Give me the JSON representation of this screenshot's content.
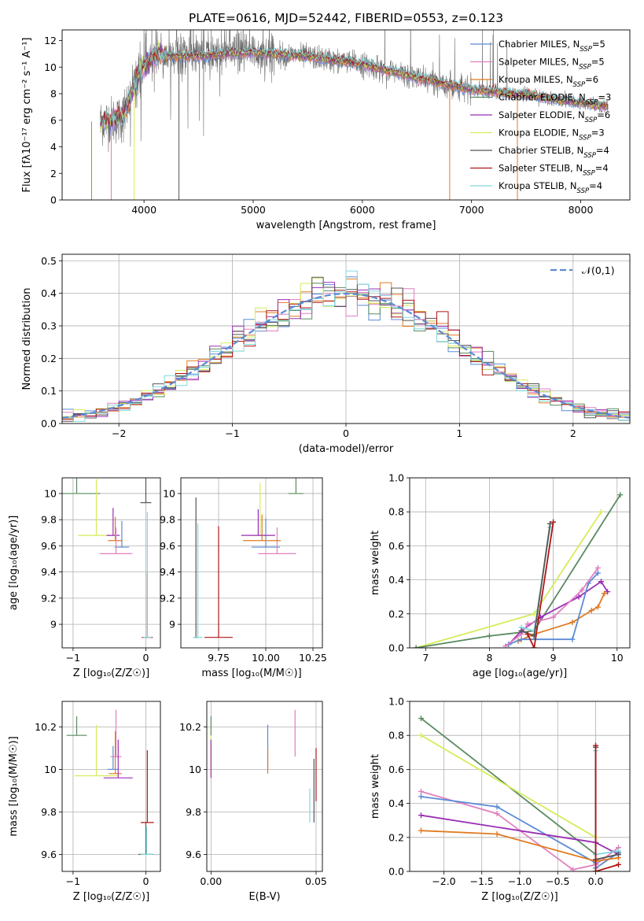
{
  "figure": {
    "title": "PLATE=0616, MJD=52442, FIBERID=0553, z=0.123"
  },
  "colors": {
    "Chabrier MILES": "#5b8bd5",
    "Salpeter MILES": "#e07fbf",
    "Kroupa MILES": "#e07b22",
    "Chabrier ELODIE": "#5a8a60",
    "Salpeter ELODIE": "#9a2fb5",
    "Kroupa ELODIE": "#d6ec5c",
    "Chabrier STELIB": "#555555",
    "Salpeter STELIB": "#b01515",
    "Kroupa STELIB": "#7fd8dc"
  },
  "chart_data": [
    {
      "id": "spectrum",
      "type": "line",
      "xlabel": "wavelength [Angstrom, rest frame]",
      "ylabel": "Flux [fλ10⁻¹⁷ erg cm⁻² s⁻¹ A⁻¹]",
      "xlim": [
        3250,
        8450
      ],
      "ylim": [
        0,
        12.8
      ],
      "xticks": [
        4000,
        5000,
        6000,
        7000,
        8000
      ],
      "yticks": [
        0,
        2,
        4,
        6,
        8,
        10,
        12
      ],
      "legend_position": "top-right",
      "series": [
        {
          "name": "Chabrier MILES",
          "nssp": "N_SSP=5"
        },
        {
          "name": "Salpeter MILES",
          "nssp": "N_SSP=5"
        },
        {
          "name": "Kroupa MILES",
          "nssp": "N_SSP=6"
        },
        {
          "name": "Chabrier ELODIE",
          "nssp": "N_SSP=3"
        },
        {
          "name": "Salpeter ELODIE",
          "nssp": "N_SSP=6"
        },
        {
          "name": "Kroupa ELODIE",
          "nssp": "N_SSP=3"
        },
        {
          "name": "Chabrier STELIB",
          "nssp": "N_SSP=4"
        },
        {
          "name": "Salpeter STELIB",
          "nssp": "N_SSP=4"
        },
        {
          "name": "Kroupa STELIB",
          "nssp": "N_SSP=4"
        }
      ],
      "continuum": [
        [
          3600,
          5.9
        ],
        [
          3800,
          6.1
        ],
        [
          3950,
          9.5
        ],
        [
          4100,
          11.0
        ],
        [
          4300,
          10.8
        ],
        [
          4600,
          10.9
        ],
        [
          5000,
          11.1
        ],
        [
          5500,
          10.8
        ],
        [
          6000,
          10.2
        ],
        [
          6500,
          9.2
        ],
        [
          7000,
          8.3
        ],
        [
          7500,
          7.9
        ],
        [
          8000,
          7.3
        ],
        [
          8250,
          7.0
        ]
      ]
    },
    {
      "id": "residuals",
      "type": "bar",
      "xlabel": "(data-model)/error",
      "ylabel": "Normed distribution",
      "xlim": [
        -2.5,
        2.5
      ],
      "ylim": [
        0,
        0.52
      ],
      "xticks": [
        -2,
        -1,
        0,
        1,
        2
      ],
      "yticks": [
        0.0,
        0.1,
        0.2,
        0.3,
        0.4,
        0.5
      ],
      "legend": "𝒩(0,1)",
      "legend_position": "top-right",
      "bin_width": 0.1
    },
    {
      "id": "age-vs-Z",
      "type": "scatter",
      "xlabel": "Z [log₁₀(Z/Z☉)]",
      "ylabel": "age  [log₁₀(age/yr)]",
      "xlim": [
        -1.15,
        0.2
      ],
      "ylim": [
        8.82,
        10.12
      ],
      "xticks": [
        -1,
        0
      ],
      "yticks": [
        9.0,
        9.2,
        9.4,
        9.6,
        9.8,
        10.0
      ],
      "points": [
        {
          "series": "Chabrier ELODIE",
          "x": -0.95,
          "y": 10.0,
          "xerr": 0.65,
          "yerr": 0.42
        },
        {
          "series": "Kroupa ELODIE",
          "x": -0.68,
          "y": 9.68,
          "xerr": 0.5,
          "yerr": 0.43
        },
        {
          "series": "Chabrier MILES",
          "x": -0.33,
          "y": 9.59,
          "xerr": 0.2,
          "yerr": 0.2
        },
        {
          "series": "Salpeter ELODIE",
          "x": -0.45,
          "y": 9.68,
          "xerr": 0.18,
          "yerr": 0.21
        },
        {
          "series": "Kroupa MILES",
          "x": -0.42,
          "y": 9.64,
          "xerr": 0.2,
          "yerr": 0.18
        },
        {
          "series": "Salpeter MILES",
          "x": -0.41,
          "y": 9.54,
          "xerr": 0.45,
          "yerr": 0.2
        },
        {
          "series": "Chabrier STELIB",
          "x": 0.0,
          "y": 9.93,
          "xerr": 0.15,
          "yerr": 0.75
        },
        {
          "series": "Salpeter STELIB",
          "x": 0.02,
          "y": 8.9,
          "xerr": 0.15,
          "yerr": 0.5
        },
        {
          "series": "Kroupa STELIB",
          "x": 0.02,
          "y": 8.9,
          "xerr": 0.12,
          "yerr": 0.96
        }
      ]
    },
    {
      "id": "age-vs-mass",
      "type": "scatter",
      "xlabel": "mass [log₁₀(M/M☉)]",
      "ylabel": "",
      "xlim": [
        9.55,
        10.3
      ],
      "ylim": [
        8.82,
        10.12
      ],
      "xticks": [
        9.75,
        10.0,
        10.25
      ],
      "xticklabels": [
        "9.75",
        "10.00",
        "10.25"
      ],
      "yticks": [
        9.0,
        9.2,
        9.4,
        9.6,
        9.8,
        10.0
      ],
      "points": [
        {
          "series": "Chabrier STELIB",
          "x": 9.63,
          "y": 8.9,
          "xerr": 0.02,
          "yerr": 1.07
        },
        {
          "series": "Kroupa STELIB",
          "x": 9.64,
          "y": 8.9,
          "xerr": 0.05,
          "yerr": 0.87
        },
        {
          "series": "Salpeter STELIB",
          "x": 9.75,
          "y": 8.9,
          "xerr": 0.15,
          "yerr": 0.85
        },
        {
          "series": "Kroupa ELODIE",
          "x": 9.97,
          "y": 9.68,
          "xerr": 0.12,
          "yerr": 0.4
        },
        {
          "series": "Chabrier ELODIE",
          "x": 10.16,
          "y": 10.0,
          "xerr": 0.08,
          "yerr": 0.36
        },
        {
          "series": "Chabrier MILES",
          "x": 10.0,
          "y": 9.59,
          "xerr": 0.15,
          "yerr": 0.22
        },
        {
          "series": "Salpeter MILES",
          "x": 10.06,
          "y": 9.54,
          "xerr": 0.2,
          "yerr": 0.2
        },
        {
          "series": "Kroupa MILES",
          "x": 9.98,
          "y": 9.64,
          "xerr": 0.2,
          "yerr": 0.2
        },
        {
          "series": "Salpeter ELODIE",
          "x": 9.96,
          "y": 9.68,
          "xerr": 0.18,
          "yerr": 0.2
        }
      ]
    },
    {
      "id": "weight-vs-age",
      "type": "line",
      "xlabel": "age  [log₁₀(age/yr)]",
      "ylabel": "mass weight",
      "xlim": [
        6.75,
        10.2
      ],
      "ylim": [
        0,
        1.0
      ],
      "xticks": [
        7,
        8,
        9,
        10
      ],
      "yticks": [
        0.0,
        0.2,
        0.4,
        0.6,
        0.8,
        1.0
      ],
      "series": [
        {
          "name": "Kroupa ELODIE",
          "x": [
            6.85,
            8.7,
            9.75
          ],
          "y": [
            0.0,
            0.2,
            0.8
          ]
        },
        {
          "name": "Chabrier ELODIE",
          "x": [
            6.85,
            8.0,
            8.7,
            10.05
          ],
          "y": [
            0.0,
            0.07,
            0.1,
            0.9
          ]
        },
        {
          "name": "Kroupa MILES",
          "x": [
            8.45,
            8.7,
            9.3,
            9.6,
            9.7,
            9.8
          ],
          "y": [
            0.04,
            0.08,
            0.15,
            0.22,
            0.24,
            0.32
          ]
        },
        {
          "name": "Salpeter ELODIE",
          "x": [
            8.3,
            8.5,
            8.8,
            9.4,
            9.75,
            9.85
          ],
          "y": [
            0.02,
            0.1,
            0.18,
            0.3,
            0.39,
            0.33
          ]
        },
        {
          "name": "Chabrier MILES",
          "x": [
            8.3,
            8.5,
            9.3,
            9.55,
            9.7
          ],
          "y": [
            0.02,
            0.05,
            0.05,
            0.38,
            0.44
          ]
        },
        {
          "name": "Salpeter MILES",
          "x": [
            8.25,
            8.5,
            8.6,
            9.0,
            9.45,
            9.7
          ],
          "y": [
            0.01,
            0.08,
            0.14,
            0.18,
            0.34,
            0.47
          ]
        },
        {
          "name": "Kroupa STELIB",
          "x": [
            8.5,
            8.7,
            8.95
          ],
          "y": [
            0.12,
            0.1,
            0.71
          ]
        },
        {
          "name": "Chabrier STELIB",
          "x": [
            8.5,
            8.7,
            8.95
          ],
          "y": [
            0.1,
            0.07,
            0.73
          ]
        },
        {
          "name": "Salpeter STELIB",
          "x": [
            8.6,
            8.7,
            9.0
          ],
          "y": [
            0.08,
            0.0,
            0.74
          ]
        }
      ]
    },
    {
      "id": "mass-vs-Z",
      "type": "scatter",
      "xlabel": "Z [log₁₀(Z/Z☉)]",
      "ylabel": "mass [log₁₀(M/M☉)]",
      "xlim": [
        -1.15,
        0.2
      ],
      "ylim": [
        9.52,
        10.32
      ],
      "xticks": [
        -1,
        0
      ],
      "yticks": [
        9.6,
        9.8,
        10.0,
        10.2
      ],
      "points": [
        {
          "series": "Chabrier ELODIE",
          "x": -0.95,
          "y": 10.16,
          "xerr": 0.28,
          "yerr": 0.09
        },
        {
          "series": "Kroupa ELODIE",
          "x": -0.68,
          "y": 9.97,
          "xerr": 0.6,
          "yerr": 0.24
        },
        {
          "series": "Chabrier MILES",
          "x": -0.45,
          "y": 10.0,
          "xerr": 0.15,
          "yerr": 0.11
        },
        {
          "series": "Salpeter MILES",
          "x": -0.41,
          "y": 10.06,
          "xerr": 0.15,
          "yerr": 0.22
        },
        {
          "series": "Kroupa MILES",
          "x": -0.42,
          "y": 9.98,
          "xerr": 0.18,
          "yerr": 0.2
        },
        {
          "series": "Salpeter ELODIE",
          "x": -0.38,
          "y": 9.96,
          "xerr": 0.4,
          "yerr": 0.18
        },
        {
          "series": "Salpeter STELIB",
          "x": 0.02,
          "y": 9.75,
          "xerr": 0.18,
          "yerr": 0.34
        },
        {
          "series": "Chabrier STELIB",
          "x": 0.0,
          "y": 9.6,
          "xerr": 0.2,
          "yerr": 0.15
        },
        {
          "series": "Kroupa STELIB",
          "x": 0.01,
          "y": 9.6,
          "xerr": 0.17,
          "yerr": 0.13
        }
      ]
    },
    {
      "id": "mass-vs-ebv",
      "type": "scatter",
      "xlabel": "E(B-V)",
      "ylabel": "",
      "xlim": [
        -0.002,
        0.053
      ],
      "ylim": [
        9.52,
        10.32
      ],
      "xticks": [
        0.0,
        0.05
      ],
      "xticklabels": [
        "0.00",
        "0.05"
      ],
      "yticks": [
        9.6,
        9.8,
        10.0,
        10.2
      ],
      "points": [
        {
          "series": "Kroupa ELODIE",
          "x": 0.0,
          "y": 9.97,
          "yerr": 0.24
        },
        {
          "series": "Chabrier ELODIE",
          "x": 0.0,
          "y": 10.16,
          "yerr": 0.09
        },
        {
          "series": "Salpeter ELODIE",
          "x": 0.0,
          "y": 9.96,
          "yerr": 0.18
        },
        {
          "series": "Chabrier MILES",
          "x": 0.027,
          "y": 10.0,
          "yerr": 0.21
        },
        {
          "series": "Kroupa MILES",
          "x": 0.027,
          "y": 9.98,
          "yerr": 0.12
        },
        {
          "series": "Salpeter MILES",
          "x": 0.04,
          "y": 10.06,
          "yerr": 0.22
        },
        {
          "series": "Kroupa STELIB",
          "x": 0.047,
          "y": 9.75,
          "yerr": 0.16
        },
        {
          "series": "Chabrier STELIB",
          "x": 0.049,
          "y": 9.75,
          "yerr": 0.3
        },
        {
          "series": "Salpeter STELIB",
          "x": 0.05,
          "y": 9.85,
          "yerr": 0.25
        }
      ]
    },
    {
      "id": "weight-vs-Z",
      "type": "line",
      "xlabel": "Z [log₁₀(Z/Z☉)]",
      "ylabel": "mass weight",
      "xlim": [
        -2.45,
        0.45
      ],
      "ylim": [
        0,
        1.0
      ],
      "xticks": [
        -2.0,
        -1.5,
        -1.0,
        -0.5,
        0.0
      ],
      "xticklabels": [
        "−2.0",
        "−1.5",
        "−1.0",
        "−0.5",
        "0.0"
      ],
      "yticks": [
        0.0,
        0.2,
        0.4,
        0.6,
        0.8,
        1.0
      ],
      "series": [
        {
          "name": "Chabrier ELODIE",
          "x": [
            -2.3,
            0.0
          ],
          "y": [
            0.9,
            0.1
          ]
        },
        {
          "name": "Kroupa ELODIE",
          "x": [
            -2.3,
            0.0,
            0.0
          ],
          "y": [
            0.8,
            0.2,
            0.0
          ]
        },
        {
          "name": "Salpeter MILES",
          "x": [
            -2.3,
            -1.3,
            -0.3,
            0.0,
            0.3
          ],
          "y": [
            0.47,
            0.34,
            0.01,
            0.04,
            0.14
          ]
        },
        {
          "name": "Chabrier MILES",
          "x": [
            -2.3,
            -1.3,
            0.0,
            0.0,
            0.3
          ],
          "y": [
            0.44,
            0.38,
            0.05,
            0.02,
            0.11
          ]
        },
        {
          "name": "Salpeter ELODIE",
          "x": [
            -2.3,
            0.0,
            0.3
          ],
          "y": [
            0.33,
            0.17,
            0.1
          ]
        },
        {
          "name": "Kroupa MILES",
          "x": [
            -2.3,
            -1.3,
            0.0,
            0.3
          ],
          "y": [
            0.24,
            0.22,
            0.06,
            0.08
          ]
        },
        {
          "name": "Kroupa STELIB",
          "x": [
            0.0,
            0.0,
            0.3
          ],
          "y": [
            0.71,
            0.1,
            0.12
          ]
        },
        {
          "name": "Chabrier STELIB",
          "x": [
            0.0,
            0.0,
            0.3
          ],
          "y": [
            0.73,
            0.07,
            0.1
          ]
        },
        {
          "name": "Salpeter STELIB",
          "x": [
            0.0,
            0.0,
            0.3
          ],
          "y": [
            0.74,
            0.0,
            0.04
          ]
        }
      ]
    }
  ]
}
